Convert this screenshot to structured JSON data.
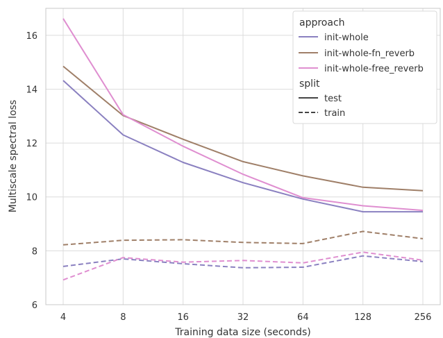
{
  "chart_data": {
    "type": "line",
    "title": "",
    "xlabel": "Training data size (seconds)",
    "ylabel": "Multiscale spectral loss",
    "x_scale": "log2",
    "x": [
      4,
      8,
      16,
      32,
      64,
      128,
      256
    ],
    "x_tick_labels": [
      "4",
      "8",
      "16",
      "32",
      "64",
      "128",
      "256"
    ],
    "ylim": [
      6,
      17
    ],
    "y_ticks": [
      6,
      8,
      10,
      12,
      14,
      16
    ],
    "y_tick_labels": [
      "6",
      "8",
      "10",
      "12",
      "14",
      "16"
    ],
    "grid": true,
    "legend_position": "top-right",
    "legend": {
      "approach_title": "approach",
      "approach_items": [
        {
          "label": "init-whole",
          "color": "#8a80c0"
        },
        {
          "label": "init-whole-fn_reverb",
          "color": "#9f7f68"
        },
        {
          "label": "init-whole-free_reverb",
          "color": "#df8ed0"
        }
      ],
      "split_title": "split",
      "split_items": [
        {
          "label": "test",
          "dash": "solid"
        },
        {
          "label": "train",
          "dash": "dashed"
        }
      ]
    },
    "series": [
      {
        "approach": "init-whole",
        "split": "test",
        "color": "#8a80c0",
        "dash": "solid",
        "values": [
          14.32,
          12.3,
          11.28,
          10.53,
          9.92,
          9.45,
          9.45
        ]
      },
      {
        "approach": "init-whole-fn_reverb",
        "split": "test",
        "color": "#9f7f68",
        "dash": "solid",
        "values": [
          14.85,
          13.02,
          12.14,
          11.31,
          10.78,
          10.36,
          10.23
        ]
      },
      {
        "approach": "init-whole-free_reverb",
        "split": "test",
        "color": "#df8ed0",
        "dash": "solid",
        "values": [
          16.62,
          13.05,
          11.88,
          10.84,
          9.97,
          9.67,
          9.5
        ]
      },
      {
        "approach": "init-whole",
        "split": "train",
        "color": "#8a80c0",
        "dash": "dashed",
        "values": [
          7.42,
          7.7,
          7.52,
          7.37,
          7.39,
          7.81,
          7.6
        ]
      },
      {
        "approach": "init-whole-fn_reverb",
        "split": "train",
        "color": "#9f7f68",
        "dash": "dashed",
        "values": [
          8.22,
          8.39,
          8.41,
          8.31,
          8.27,
          8.72,
          8.45
        ]
      },
      {
        "approach": "init-whole-free_reverb",
        "split": "train",
        "color": "#df8ed0",
        "dash": "dashed",
        "values": [
          6.92,
          7.75,
          7.58,
          7.64,
          7.55,
          7.95,
          7.65
        ]
      }
    ]
  }
}
